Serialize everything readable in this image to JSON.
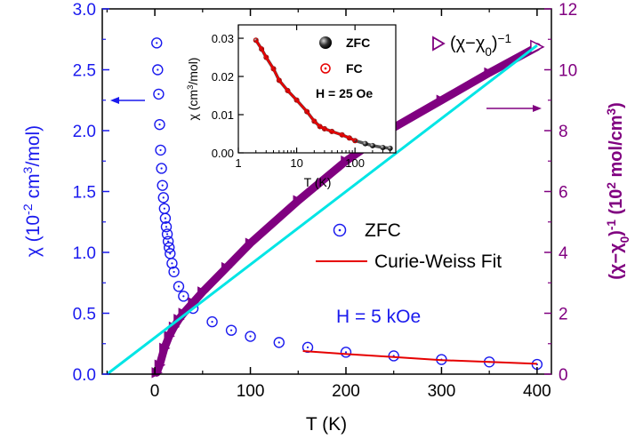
{
  "chart_data": [
    {
      "type": "scatter",
      "x": {
        "label": "T (K)",
        "ticks": [
          "0",
          "100",
          "200",
          "300",
          "400"
        ],
        "tick_values": [
          0,
          100,
          200,
          300,
          400
        ],
        "range": [
          -55,
          415
        ]
      },
      "y_left": {
        "label_parts": [
          "χ (10",
          "-2",
          " cm",
          "3",
          "/mol)"
        ],
        "ticks": [
          "0.0",
          "0.5",
          "1.0",
          "1.5",
          "2.0",
          "2.5",
          "3.0"
        ],
        "tick_values": [
          0,
          0.5,
          1.0,
          1.5,
          2.0,
          2.5,
          3.0
        ],
        "range": [
          0,
          3.0
        ],
        "color": "#1a1aee"
      },
      "y_right": {
        "label_parts": [
          "(χ−χ",
          "0",
          ")",
          "-1",
          " (10",
          "2",
          " mol/cm",
          "3",
          ")"
        ],
        "ticks": [
          "0",
          "2",
          "4",
          "6",
          "8",
          "10",
          "12"
        ],
        "tick_values": [
          0,
          2,
          4,
          6,
          8,
          10,
          12
        ],
        "range": [
          0,
          12
        ],
        "color": "#800080"
      },
      "series": [
        {
          "name": "ZFC",
          "axis": "left",
          "marker": "circle-dot",
          "color": "#1a1aee",
          "points": [
            [
              2,
              2.72
            ],
            [
              3,
              2.5
            ],
            [
              4,
              2.3
            ],
            [
              5,
              2.05
            ],
            [
              6,
              1.84
            ],
            [
              7,
              1.69
            ],
            [
              8,
              1.55
            ],
            [
              9,
              1.45
            ],
            [
              10,
              1.36
            ],
            [
              11,
              1.28
            ],
            [
              12,
              1.21
            ],
            [
              13,
              1.15
            ],
            [
              14,
              1.09
            ],
            [
              15,
              1.04
            ],
            [
              16,
              0.99
            ],
            [
              18,
              0.91
            ],
            [
              20,
              0.84
            ],
            [
              25,
              0.72
            ],
            [
              30,
              0.64
            ],
            [
              40,
              0.54
            ],
            [
              60,
              0.43
            ],
            [
              80,
              0.36
            ],
            [
              100,
              0.31
            ],
            [
              130,
              0.26
            ],
            [
              160,
              0.22
            ],
            [
              200,
              0.18
            ],
            [
              250,
              0.15
            ],
            [
              300,
              0.12
            ],
            [
              350,
              0.1
            ],
            [
              400,
              0.08
            ]
          ]
        },
        {
          "name": "Curie-Weiss Fit",
          "axis": "left",
          "style": "line",
          "color": "#e60000",
          "points": [
            [
              155,
              0.19
            ],
            [
              200,
              0.165
            ],
            [
              250,
              0.14
            ],
            [
              300,
              0.115
            ],
            [
              350,
              0.1
            ],
            [
              400,
              0.085
            ]
          ]
        },
        {
          "name": "(χ−χ0)^-1",
          "legend_parts": [
            "(χ−χ",
            "0",
            ")",
            "−1"
          ],
          "axis": "right",
          "marker": "triangle-right",
          "color": "#800080",
          "points": [
            [
              2,
              0.05
            ],
            [
              5,
              0.3
            ],
            [
              10,
              0.85
            ],
            [
              15,
              1.25
            ],
            [
              20,
              1.55
            ],
            [
              25,
              1.8
            ],
            [
              30,
              2.0
            ],
            [
              40,
              2.35
            ],
            [
              50,
              2.7
            ],
            [
              75,
              3.5
            ],
            [
              100,
              4.3
            ],
            [
              150,
              5.7
            ],
            [
              200,
              7.0
            ],
            [
              250,
              8.1
            ],
            [
              300,
              9.0
            ],
            [
              350,
              9.9
            ],
            [
              400,
              10.75
            ]
          ]
        },
        {
          "name": "Curie-Weiss line",
          "axis": "right",
          "style": "line",
          "color": "#00e5e5",
          "points": [
            [
              -50,
              0.0
            ],
            [
              400,
              10.8
            ]
          ]
        }
      ],
      "legend": [
        "ZFC",
        "Curie-Weiss Fit"
      ],
      "annotations": {
        "field": "H = 5 kOe",
        "arrow_left_target": "left axis",
        "arrow_right_target": "right axis"
      }
    },
    {
      "type": "scatter",
      "inset": true,
      "x": {
        "label": "T (K)",
        "scale": "log",
        "ticks": [
          "1",
          "10",
          "100"
        ],
        "tick_values": [
          1,
          10,
          100
        ],
        "range": [
          1,
          500
        ]
      },
      "y": {
        "label_parts": [
          "χ (cm",
          "3",
          "/mol)"
        ],
        "ticks": [
          "0.00",
          "0.01",
          "0.02",
          "0.03"
        ],
        "tick_values": [
          0,
          0.01,
          0.02,
          0.03
        ],
        "range": [
          0,
          0.0335
        ]
      },
      "series": [
        {
          "name": "ZFC",
          "marker": "sphere",
          "color": "#000000",
          "points": [
            [
              2,
              0.0295
            ],
            [
              2.5,
              0.0272
            ],
            [
              3,
              0.025
            ],
            [
              4,
              0.022
            ],
            [
              5,
              0.019
            ],
            [
              7,
              0.0163
            ],
            [
              10,
              0.0138
            ],
            [
              15,
              0.0108
            ],
            [
              20,
              0.0083
            ],
            [
              25,
              0.0069
            ],
            [
              30,
              0.0063
            ],
            [
              40,
              0.0056
            ],
            [
              60,
              0.0047
            ],
            [
              80,
              0.0039
            ],
            [
              100,
              0.0032
            ],
            [
              150,
              0.0024
            ],
            [
              200,
              0.0019
            ],
            [
              300,
              0.0014
            ],
            [
              400,
              0.0012
            ]
          ]
        },
        {
          "name": "FC",
          "marker": "circle-dot",
          "color": "#e60000",
          "points": [
            [
              2,
              0.0295
            ],
            [
              2.5,
              0.0272
            ],
            [
              3,
              0.025
            ],
            [
              4,
              0.022
            ],
            [
              5,
              0.019
            ],
            [
              7,
              0.0163
            ],
            [
              10,
              0.0138
            ],
            [
              15,
              0.0108
            ],
            [
              20,
              0.0083
            ],
            [
              25,
              0.0069
            ],
            [
              30,
              0.0063
            ],
            [
              40,
              0.0056
            ],
            [
              60,
              0.0047
            ],
            [
              80,
              0.0039
            ],
            [
              100,
              0.0032
            ]
          ]
        }
      ],
      "legend": [
        "ZFC",
        "FC"
      ],
      "annotations": {
        "field": "H = 25 Oe"
      }
    }
  ]
}
